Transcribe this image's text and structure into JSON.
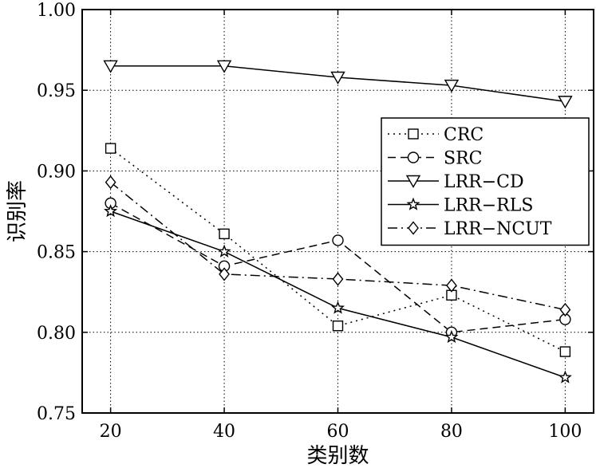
{
  "chart_data": {
    "type": "line",
    "xlabel": "类别数",
    "ylabel": "识别率",
    "x": [
      20,
      40,
      60,
      80,
      100
    ],
    "xticks": [
      "20",
      "40",
      "60",
      "80",
      "100"
    ],
    "yticks": [
      "0.75",
      "0.80",
      "0.85",
      "0.90",
      "0.95",
      "1.00"
    ],
    "xlim": [
      15,
      105
    ],
    "ylim": [
      0.75,
      1.0
    ],
    "grid": true,
    "legend_position": "right",
    "series": [
      {
        "name": "CRC",
        "marker": "square",
        "dash": "dotted",
        "values": [
          0.914,
          0.861,
          0.804,
          0.823,
          0.788
        ]
      },
      {
        "name": "SRC",
        "marker": "circle",
        "dash": "dashed",
        "values": [
          0.88,
          0.841,
          0.857,
          0.8,
          0.808
        ]
      },
      {
        "name": "LRR−CD",
        "marker": "triangle-down",
        "dash": "solid",
        "values": [
          0.965,
          0.965,
          0.958,
          0.953,
          0.943
        ]
      },
      {
        "name": "LRR−RLS",
        "marker": "star",
        "dash": "solid",
        "values": [
          0.875,
          0.85,
          0.815,
          0.797,
          0.772
        ]
      },
      {
        "name": "LRR−NCUT",
        "marker": "diamond",
        "dash": "dashdot",
        "values": [
          0.893,
          0.836,
          0.833,
          0.829,
          0.814
        ]
      }
    ]
  }
}
